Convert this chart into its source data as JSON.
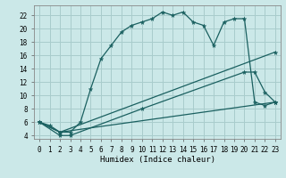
{
  "xlabel": "Humidex (Indice chaleur)",
  "background_color": "#cbe8e8",
  "grid_color": "#a8cccc",
  "line_color": "#1a6060",
  "xlim": [
    -0.5,
    23.5
  ],
  "ylim": [
    3.5,
    23.5
  ],
  "yticks": [
    4,
    6,
    8,
    10,
    12,
    14,
    16,
    18,
    20,
    22
  ],
  "xticks": [
    0,
    1,
    2,
    3,
    4,
    5,
    6,
    7,
    8,
    9,
    10,
    11,
    12,
    13,
    14,
    15,
    16,
    17,
    18,
    19,
    20,
    21,
    22,
    23
  ],
  "curve1_x": [
    0,
    1,
    2,
    3,
    4,
    5,
    6,
    7,
    8,
    9,
    10,
    11,
    12,
    13,
    14,
    15,
    16,
    17,
    18,
    19,
    20,
    21,
    22,
    23
  ],
  "curve1_y": [
    6.0,
    5.5,
    4.5,
    4.5,
    6.0,
    11.0,
    15.5,
    17.5,
    19.5,
    20.5,
    21.0,
    21.5,
    22.5,
    22.0,
    22.5,
    21.0,
    20.5,
    17.5,
    21.0,
    21.5,
    21.5,
    9.0,
    8.5,
    9.0
  ],
  "curve2_x": [
    0,
    2,
    23
  ],
  "curve2_y": [
    6.0,
    4.5,
    9.0
  ],
  "curve3_x": [
    0,
    2,
    23
  ],
  "curve3_y": [
    6.0,
    4.5,
    16.5
  ],
  "curve4_x": [
    0,
    2,
    3,
    10,
    20,
    21,
    22,
    23
  ],
  "curve4_y": [
    6.0,
    4.0,
    4.0,
    8.0,
    13.5,
    13.5,
    10.5,
    9.0
  ],
  "markersize": 3.5
}
